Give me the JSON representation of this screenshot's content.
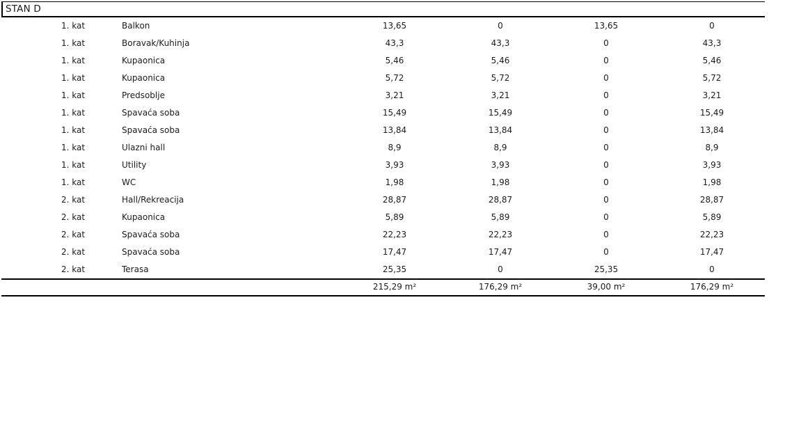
{
  "title": "STAN D",
  "table": {
    "rows": [
      [
        "1. kat",
        "Balkon",
        "13,65",
        "0",
        "13,65",
        "0"
      ],
      [
        "1. kat",
        "Boravak/Kuhinja",
        "43,3",
        "43,3",
        "0",
        "43,3"
      ],
      [
        "1. kat",
        "Kupaonica",
        "5,46",
        "5,46",
        "0",
        "5,46"
      ],
      [
        "1. kat",
        "Kupaonica",
        "5,72",
        "5,72",
        "0",
        "5,72"
      ],
      [
        "1. kat",
        "Predsoblje",
        "3,21",
        "3,21",
        "0",
        "3,21"
      ],
      [
        "1. kat",
        "Spavaća soba",
        "15,49",
        "15,49",
        "0",
        "15,49"
      ],
      [
        "1. kat",
        "Spavaća soba",
        "13,84",
        "13,84",
        "0",
        "13,84"
      ],
      [
        "1. kat",
        "Ulazni hall",
        "8,9",
        "8,9",
        "0",
        "8,9"
      ],
      [
        "1. kat",
        "Utility",
        "3,93",
        "3,93",
        "0",
        "3,93"
      ],
      [
        "1. kat",
        "WC",
        "1,98",
        "1,98",
        "0",
        "1,98"
      ],
      [
        "2. kat",
        "Hall/Rekreacija",
        "28,87",
        "28,87",
        "0",
        "28,87"
      ],
      [
        "2. kat",
        "Kupaonica",
        "5,89",
        "5,89",
        "0",
        "5,89"
      ],
      [
        "2. kat",
        "Spavaća soba",
        "22,23",
        "22,23",
        "0",
        "22,23"
      ],
      [
        "2. kat",
        "Spavaća soba",
        "17,47",
        "17,47",
        "0",
        "17,47"
      ],
      [
        "2. kat",
        "Terasa",
        "25,35",
        "0",
        "25,35",
        "0"
      ]
    ],
    "totals": [
      "215,29 m²",
      "176,29 m²",
      "39,00 m²",
      "176,29 m²"
    ]
  },
  "colors": {
    "text": "#1b1b1b",
    "rule": "#000000",
    "background": "#ffffff"
  }
}
